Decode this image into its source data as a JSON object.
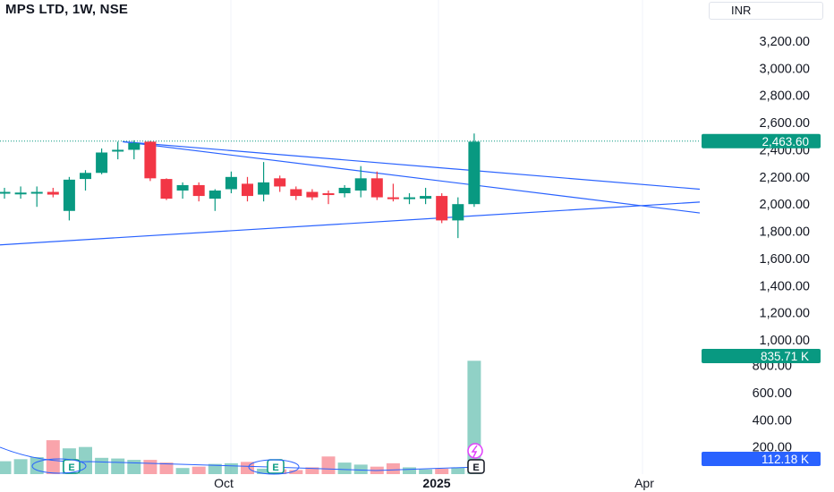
{
  "header": {
    "title": "MPS LTD, 1W, NSE",
    "currency": "INR"
  },
  "colors": {
    "up": "#089981",
    "down": "#f23645",
    "trendline": "#2962ff",
    "price_line": "#089981",
    "volume_badge": "#2962ff"
  },
  "badges": {
    "last_price": "2,463.60",
    "last_volume": "835.71 K",
    "volume_ma": "112.18 K"
  },
  "markers": {
    "earnings": "E",
    "split": "split-icon"
  },
  "chart_data": {
    "type": "candlestick",
    "title": "MPS LTD, 1W, NSE",
    "currency": "INR",
    "price_axis": {
      "ticks": [
        "3,200.00",
        "3,000.00",
        "2,800.00",
        "2,600.00",
        "2,400.00",
        "2,200.00",
        "2,000.00",
        "1,800.00",
        "1,600.00",
        "1,400.00",
        "1,200.00",
        "1,000.00"
      ],
      "ylim": [
        900,
        3400
      ]
    },
    "volume_axis": {
      "ticks": [
        "800.00",
        "600.00",
        "400.00",
        "200.00"
      ],
      "unit": "K"
    },
    "x_axis": {
      "ticks": [
        "Oct",
        "2025",
        "Apr"
      ]
    },
    "candles": [
      {
        "o": 2080,
        "h": 2120,
        "l": 2040,
        "c": 2090
      },
      {
        "o": 2075,
        "h": 2130,
        "l": 2040,
        "c": 2085
      },
      {
        "o": 2080,
        "h": 2130,
        "l": 1980,
        "c": 2090
      },
      {
        "o": 2090,
        "h": 2120,
        "l": 2050,
        "c": 2070
      },
      {
        "o": 1950,
        "h": 2200,
        "l": 1880,
        "c": 2180
      },
      {
        "o": 2185,
        "h": 2250,
        "l": 2100,
        "c": 2230
      },
      {
        "o": 2230,
        "h": 2410,
        "l": 2220,
        "c": 2380
      },
      {
        "o": 2395,
        "h": 2460,
        "l": 2330,
        "c": 2400
      },
      {
        "o": 2400,
        "h": 2470,
        "l": 2330,
        "c": 2450
      },
      {
        "o": 2460,
        "h": 2465,
        "l": 2170,
        "c": 2190
      },
      {
        "o": 2185,
        "h": 2190,
        "l": 2030,
        "c": 2040
      },
      {
        "o": 2100,
        "h": 2160,
        "l": 2040,
        "c": 2140
      },
      {
        "o": 2140,
        "h": 2160,
        "l": 2020,
        "c": 2060
      },
      {
        "o": 2040,
        "h": 2110,
        "l": 1950,
        "c": 2100
      },
      {
        "o": 2110,
        "h": 2240,
        "l": 2080,
        "c": 2200
      },
      {
        "o": 2150,
        "h": 2200,
        "l": 2020,
        "c": 2060
      },
      {
        "o": 2070,
        "h": 2310,
        "l": 2020,
        "c": 2160
      },
      {
        "o": 2190,
        "h": 2210,
        "l": 2090,
        "c": 2130
      },
      {
        "o": 2110,
        "h": 2130,
        "l": 2030,
        "c": 2060
      },
      {
        "o": 2090,
        "h": 2110,
        "l": 2030,
        "c": 2050
      },
      {
        "o": 2080,
        "h": 2100,
        "l": 2000,
        "c": 2070
      },
      {
        "o": 2080,
        "h": 2140,
        "l": 2050,
        "c": 2120
      },
      {
        "o": 2100,
        "h": 2280,
        "l": 2050,
        "c": 2190
      },
      {
        "o": 2190,
        "h": 2240,
        "l": 2030,
        "c": 2050
      },
      {
        "o": 2050,
        "h": 2150,
        "l": 2020,
        "c": 2040
      },
      {
        "o": 2040,
        "h": 2080,
        "l": 2000,
        "c": 2050
      },
      {
        "o": 2040,
        "h": 2120,
        "l": 2000,
        "c": 2060
      },
      {
        "o": 2060,
        "h": 2080,
        "l": 1860,
        "c": 1880
      },
      {
        "o": 1880,
        "h": 2050,
        "l": 1750,
        "c": 2000
      },
      {
        "o": 2000,
        "h": 2520,
        "l": 1980,
        "c": 2460
      }
    ],
    "volume_k": [
      95,
      110,
      125,
      250,
      190,
      200,
      120,
      115,
      105,
      105,
      85,
      45,
      55,
      75,
      80,
      90,
      40,
      35,
      30,
      50,
      130,
      85,
      70,
      55,
      80,
      50,
      35,
      40,
      50,
      835.71
    ],
    "volume_ma_k": 112.18,
    "last_price": 2463.6,
    "last_volume_k": 835.71
  }
}
